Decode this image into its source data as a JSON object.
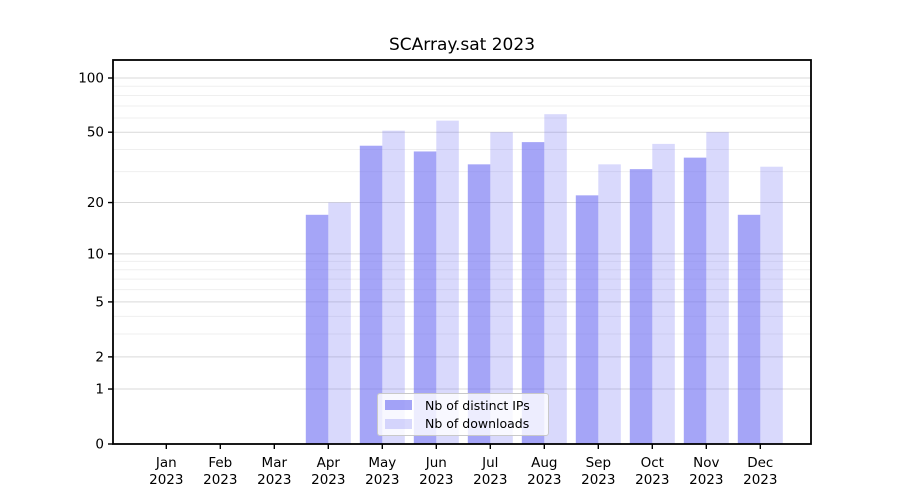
{
  "chart_data": {
    "type": "bar",
    "title": "SCArray.sat 2023",
    "x_axis": {
      "months": [
        "Jan",
        "Feb",
        "Mar",
        "Apr",
        "May",
        "Jun",
        "Jul",
        "Aug",
        "Sep",
        "Oct",
        "Nov",
        "Dec"
      ],
      "year": "2023"
    },
    "y_axis": {
      "scale": "log1p",
      "tick_labels": [
        "0",
        "1",
        "2",
        "5",
        "10",
        "20",
        "50",
        "100"
      ],
      "tick_values": [
        0,
        1,
        2,
        5,
        10,
        20,
        50,
        100
      ],
      "minor_gridlines": [
        3,
        4,
        6,
        7,
        8,
        9,
        30,
        40,
        60,
        70,
        80,
        90
      ],
      "ymax": 126
    },
    "series": [
      {
        "name": "Nb of distinct IPs",
        "color": "#6e6ef2",
        "alpha": 0.62,
        "values": [
          0,
          0,
          0,
          17,
          42,
          39,
          33,
          44,
          22,
          31,
          36,
          17
        ]
      },
      {
        "name": "Nb of downloads",
        "color": "#6e6ef2",
        "alpha": 0.26,
        "values": [
          0,
          0,
          0,
          20,
          51,
          58,
          50,
          63,
          33,
          43,
          50,
          32
        ]
      }
    ],
    "legend": {
      "position": "lower-center",
      "entries": [
        "Nb of distinct IPs",
        "Nb of downloads"
      ]
    },
    "grid": {
      "major_color": "#d9d9d9",
      "minor_color": "#efefef"
    },
    "axis_color": "#000000"
  }
}
